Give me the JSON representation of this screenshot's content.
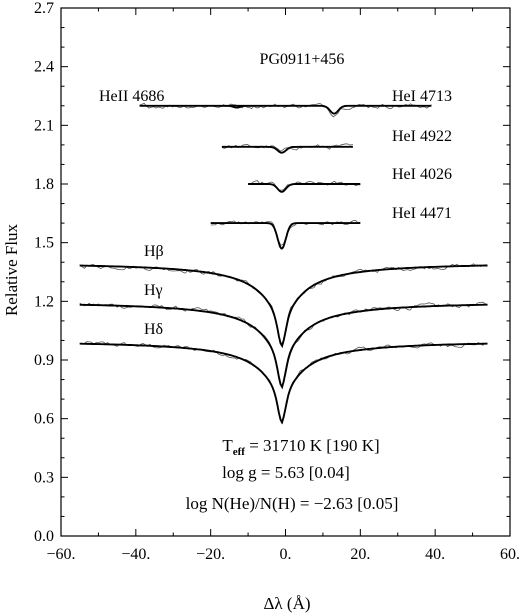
{
  "chart_data": {
    "type": "line",
    "title": "PG0911+456",
    "xlabel": "Δλ (Å)",
    "ylabel": "Relative Flux",
    "xlim": [
      -60,
      60
    ],
    "ylim": [
      0.0,
      2.7
    ],
    "x_ticks": [
      -60,
      -40,
      -20,
      0,
      20,
      40,
      60
    ],
    "x_tick_labels": [
      "−60.",
      "−40.",
      "−20.",
      "0.",
      "20.",
      "40.",
      "60."
    ],
    "y_ticks": [
      0.0,
      0.3,
      0.6,
      0.9,
      1.2,
      1.5,
      1.8,
      2.1,
      2.4,
      2.7
    ],
    "y_tick_labels": [
      "0.0",
      "0.3",
      "0.6",
      "0.9",
      "1.2",
      "1.5",
      "1.8",
      "2.1",
      "2.4",
      "2.7"
    ],
    "grid": false,
    "series": [
      {
        "name": "Hδ",
        "continuum": 1.0,
        "x_range": [
          -55,
          54
        ],
        "line_center": -1,
        "min_flux": 0.58
      },
      {
        "name": "Hγ",
        "continuum": 1.2,
        "x_range": [
          -55,
          54
        ],
        "line_center": -1,
        "min_flux": 0.76
      },
      {
        "name": "Hβ",
        "continuum": 1.4,
        "x_range": [
          -55,
          54
        ],
        "line_center": -1,
        "min_flux": 0.97
      },
      {
        "name": "HeI 4471",
        "continuum": 1.6,
        "x_range": [
          -20,
          20
        ],
        "line_center": -1,
        "min_flux": 1.47
      },
      {
        "name": "HeI 4026",
        "continuum": 1.8,
        "x_range": [
          -10,
          20
        ],
        "line_center": -1,
        "min_flux": 1.76
      },
      {
        "name": "HeI 4922",
        "continuum": 1.99,
        "x_range": [
          -17,
          18
        ],
        "line_center": -1,
        "min_flux": 1.96
      },
      {
        "name": "HeI 4713",
        "continuum": 2.2,
        "x_range": [
          -39,
          39
        ],
        "line_center": 13,
        "min_flux": 2.16
      },
      {
        "name": "HeII 4686",
        "continuum": 2.2,
        "x_range": [
          -39,
          39
        ],
        "line_center": -13,
        "min_flux": 2.19
      }
    ],
    "annotations": {
      "teff_label": "T",
      "teff_sub": "eff",
      "teff_value": " = 31710 K [190 K]",
      "logg": "log g = 5.63 [0.04]",
      "nhe": "log N(He)/N(H) = −2.63 [0.05]"
    }
  },
  "colors": {
    "axis": "#000000",
    "data": "#555555",
    "fit": "#000000"
  }
}
